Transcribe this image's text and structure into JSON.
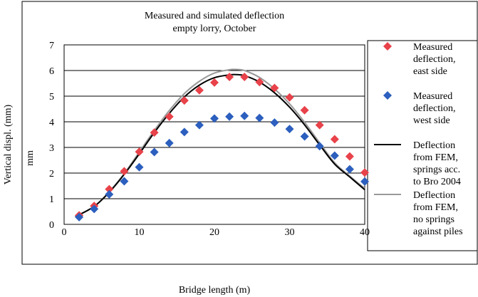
{
  "chart_data": {
    "type": "scatter",
    "title": [
      "Measured and simulated deflection",
      "empty lorry, October"
    ],
    "xlabel": "Bridge length (m)",
    "ylabel": "Vertical displ. (mm)",
    "ylabel_inner": "mm",
    "xlim": [
      0,
      40
    ],
    "ylim": [
      0,
      7
    ],
    "x_ticks": [
      0,
      10,
      20,
      30,
      40
    ],
    "y_ticks": [
      0,
      1,
      2,
      3,
      4,
      5,
      6,
      7
    ],
    "grid": "horizontal",
    "legend_position": "right",
    "series": [
      {
        "name": "Measured deflection, east side",
        "legend_lines": [
          "Measured",
          "deflection,",
          "east side"
        ],
        "kind": "marker",
        "marker": "diamond",
        "color": "#e8424a",
        "x": [
          2,
          4,
          6,
          8,
          10,
          12,
          14,
          16,
          18,
          20,
          22,
          24,
          26,
          28,
          30,
          32,
          34,
          36,
          38,
          40
        ],
        "y": [
          0.35,
          0.72,
          1.37,
          2.07,
          2.83,
          3.58,
          4.2,
          4.83,
          5.23,
          5.53,
          5.75,
          5.75,
          5.55,
          5.32,
          4.95,
          4.45,
          3.87,
          3.32,
          2.65,
          2.02
        ]
      },
      {
        "name": "Measured deflection, west side",
        "legend_lines": [
          "Measured",
          "deflection,",
          "west side"
        ],
        "kind": "marker",
        "marker": "diamond",
        "color": "#2c5fbe",
        "x": [
          2,
          4,
          6,
          8,
          10,
          12,
          14,
          16,
          18,
          20,
          22,
          24,
          26,
          28,
          30,
          32,
          34,
          36,
          38,
          40
        ],
        "y": [
          0.28,
          0.6,
          1.17,
          1.68,
          2.23,
          2.82,
          3.17,
          3.6,
          3.87,
          4.13,
          4.2,
          4.23,
          4.15,
          3.97,
          3.72,
          3.43,
          3.05,
          2.68,
          2.15,
          1.67
        ]
      },
      {
        "name": "Deflection from FEM, springs acc. to Bro 2004",
        "legend_lines": [
          "Deflection",
          "from FEM,",
          "springs acc.",
          "to Bro 2004"
        ],
        "kind": "line",
        "color": "#000000",
        "x": [
          1.5,
          4,
          6,
          8,
          10,
          12,
          14,
          16,
          18,
          20,
          22,
          23,
          24,
          26,
          28,
          30,
          32,
          34,
          36,
          38,
          40
        ],
        "y": [
          0.3,
          0.7,
          1.25,
          1.95,
          2.75,
          3.58,
          4.33,
          4.97,
          5.43,
          5.72,
          5.83,
          5.84,
          5.8,
          5.55,
          5.13,
          4.57,
          3.88,
          3.1,
          2.35,
          1.85,
          1.35
        ]
      },
      {
        "name": "Deflection from FEM, no springs against piles",
        "legend_lines": [
          "Deflection",
          "from FEM,",
          "no springs",
          "against piles"
        ],
        "kind": "line",
        "color": "#999999",
        "x": [
          1.5,
          4,
          6,
          8,
          10,
          12,
          14,
          16,
          18,
          20,
          22,
          23,
          24,
          26,
          28,
          30,
          32,
          34,
          36,
          38,
          40
        ],
        "y": [
          0.3,
          0.7,
          1.27,
          1.98,
          2.82,
          3.66,
          4.44,
          5.1,
          5.58,
          5.9,
          6.03,
          6.04,
          6.0,
          5.73,
          5.28,
          4.7,
          3.98,
          3.18,
          2.4,
          1.88,
          1.4
        ]
      }
    ]
  }
}
